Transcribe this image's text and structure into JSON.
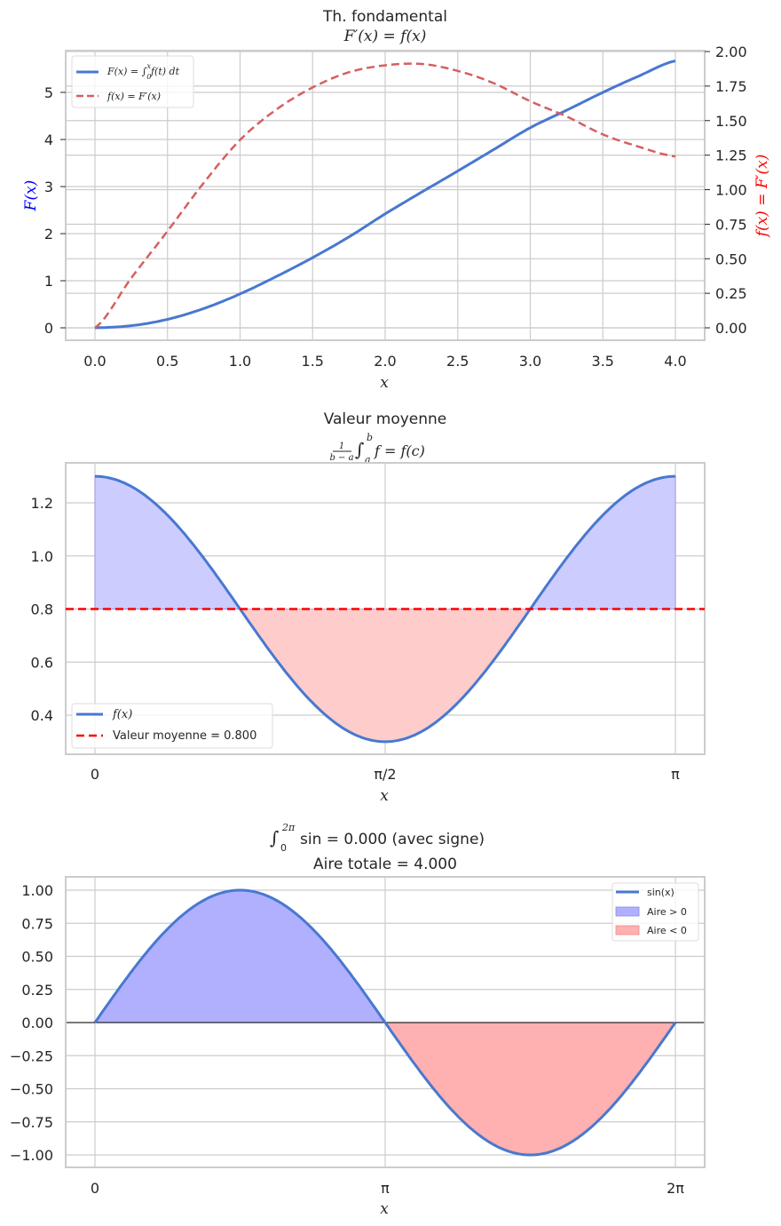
{
  "chart_data": [
    {
      "type": "line",
      "title": "Th. fondamental",
      "subtitle": "F'(x) = f(x)",
      "xlabel": "x",
      "ylabel": "F(x)",
      "ylabel_right": "f(x) = F'(x)",
      "xlim": [
        -0.2,
        4.2
      ],
      "ylim": [
        -0.27,
        5.87
      ],
      "ylim_right": [
        -0.09,
        2.0
      ],
      "x_ticks": [
        "0.0",
        "0.5",
        "1.0",
        "1.5",
        "2.0",
        "2.5",
        "3.0",
        "3.5",
        "4.0"
      ],
      "y_ticks": [
        "0",
        "1",
        "2",
        "3",
        "4",
        "5"
      ],
      "y_ticks_right": [
        "0.00",
        "0.25",
        "0.50",
        "0.75",
        "1.00",
        "1.25",
        "1.50",
        "1.75",
        "2.00"
      ],
      "grid": true,
      "legend_position": "upper left",
      "legend": [
        "F(x) = ∫₀ˣ f(t) dt",
        "f(x) = F'(x)"
      ],
      "x": [
        0,
        0.25,
        0.5,
        0.75,
        1.0,
        1.25,
        1.5,
        1.75,
        2.0,
        2.25,
        2.5,
        2.75,
        3.0,
        3.25,
        3.5,
        3.75,
        4.0
      ],
      "series": [
        {
          "name": "F(x) = ∫₀ˣ f(t) dt",
          "axis": "left",
          "style": "solid",
          "color": "#4878d0",
          "values": [
            0,
            0.045,
            0.18,
            0.41,
            0.72,
            1.09,
            1.49,
            1.93,
            2.42,
            2.88,
            3.33,
            3.79,
            4.25,
            4.62,
            5.0,
            5.35,
            5.67
          ]
        },
        {
          "name": "f(x) = F'(x)",
          "axis": "right",
          "style": "dashed",
          "color": "#d65f5f",
          "values": [
            0,
            0.36,
            0.7,
            1.05,
            1.36,
            1.58,
            1.74,
            1.85,
            1.9,
            1.91,
            1.86,
            1.77,
            1.64,
            1.53,
            1.4,
            1.31,
            1.24
          ]
        }
      ]
    },
    {
      "type": "area",
      "title": "Valeur moyenne",
      "subtitle": "1/(b−a) ∫ₐᵇ f = f(c)",
      "xlabel": "x",
      "ylabel": "",
      "xlim": [
        -0.16,
        3.3
      ],
      "ylim": [
        0.25,
        1.35
      ],
      "x_ticks": [
        "0",
        "π/2",
        "π"
      ],
      "y_ticks": [
        "0.4",
        "0.6",
        "0.8",
        "1.0",
        "1.2"
      ],
      "grid": true,
      "legend_position": "lower left",
      "legend": [
        "f(x)",
        "Valeur moyenne = 0.800"
      ],
      "mean_value": 0.8,
      "x": [
        0,
        0.3927,
        0.7854,
        1.1781,
        1.5708,
        1.9635,
        2.3562,
        2.7489,
        3.1416
      ],
      "series": [
        {
          "name": "f(x)",
          "style": "solid",
          "color": "#4878d0",
          "values": [
            1.3,
            1.154,
            0.8,
            0.446,
            0.3,
            0.446,
            0.8,
            1.154,
            1.3
          ]
        },
        {
          "name": "Valeur moyenne = 0.800",
          "style": "dashed",
          "color": "#ff0000",
          "values": [
            0.8,
            0.8,
            0.8,
            0.8,
            0.8,
            0.8,
            0.8,
            0.8,
            0.8
          ]
        }
      ],
      "fill_above_mean_color": "#ccccff",
      "fill_below_mean_color": "#ffcccc"
    },
    {
      "type": "area",
      "title": "∫₀²π sin = 0.000 (avec signe)",
      "subtitle": "Aire totale = 4.000",
      "xlabel": "x",
      "ylabel": "",
      "xlim": [
        -0.31,
        6.59
      ],
      "ylim": [
        -1.1,
        1.1
      ],
      "x_ticks": [
        "0",
        "π",
        "2π"
      ],
      "y_ticks": [
        "−1.00",
        "−0.75",
        "−0.50",
        "−0.25",
        "0.00",
        "0.25",
        "0.50",
        "0.75",
        "1.00"
      ],
      "grid": true,
      "legend_position": "upper right",
      "legend": [
        "sin(x)",
        "Aire > 0",
        "Aire < 0"
      ],
      "signed_integral": 0.0,
      "total_area": 4.0,
      "x": [
        0,
        0.7854,
        1.5708,
        2.3562,
        3.1416,
        3.927,
        4.7124,
        5.4978,
        6.2832
      ],
      "series": [
        {
          "name": "sin(x)",
          "style": "solid",
          "color": "#4878d0",
          "values": [
            0,
            0.707,
            1,
            0.707,
            0,
            -0.707,
            -1,
            -0.707,
            0
          ]
        }
      ],
      "fill_positive_color": "#b0b0ff",
      "fill_negative_color": "#ffb0b0"
    }
  ],
  "charts": {
    "c1": {
      "title": "Th. fondamental",
      "xlabel": "x",
      "ylabel_left": "F(x)",
      "ylabel_right": "f(x) = F′(x)",
      "legend_1": "F(x) = ∫",
      "legend_1_tail": "f(t) dt",
      "legend_1_sup": "x",
      "legend_1_sub": "0",
      "legend_2": "f(x) = F′(x)"
    },
    "c2": {
      "title": "Valeur moyenne",
      "legend_1": "f(x)",
      "legend_2": "Valeur moyenne  = 0.800",
      "xlabel": "x"
    },
    "c3": {
      "title_tail": "sin = 0.000 (avec signe)",
      "title_sup": "2π",
      "title_sub": "0",
      "subtitle": "Aire totale  = 4.000",
      "legend_1": "sin(x)",
      "legend_2": "Aire  > 0",
      "legend_3": "Aire  < 0",
      "xlabel": "x"
    }
  }
}
